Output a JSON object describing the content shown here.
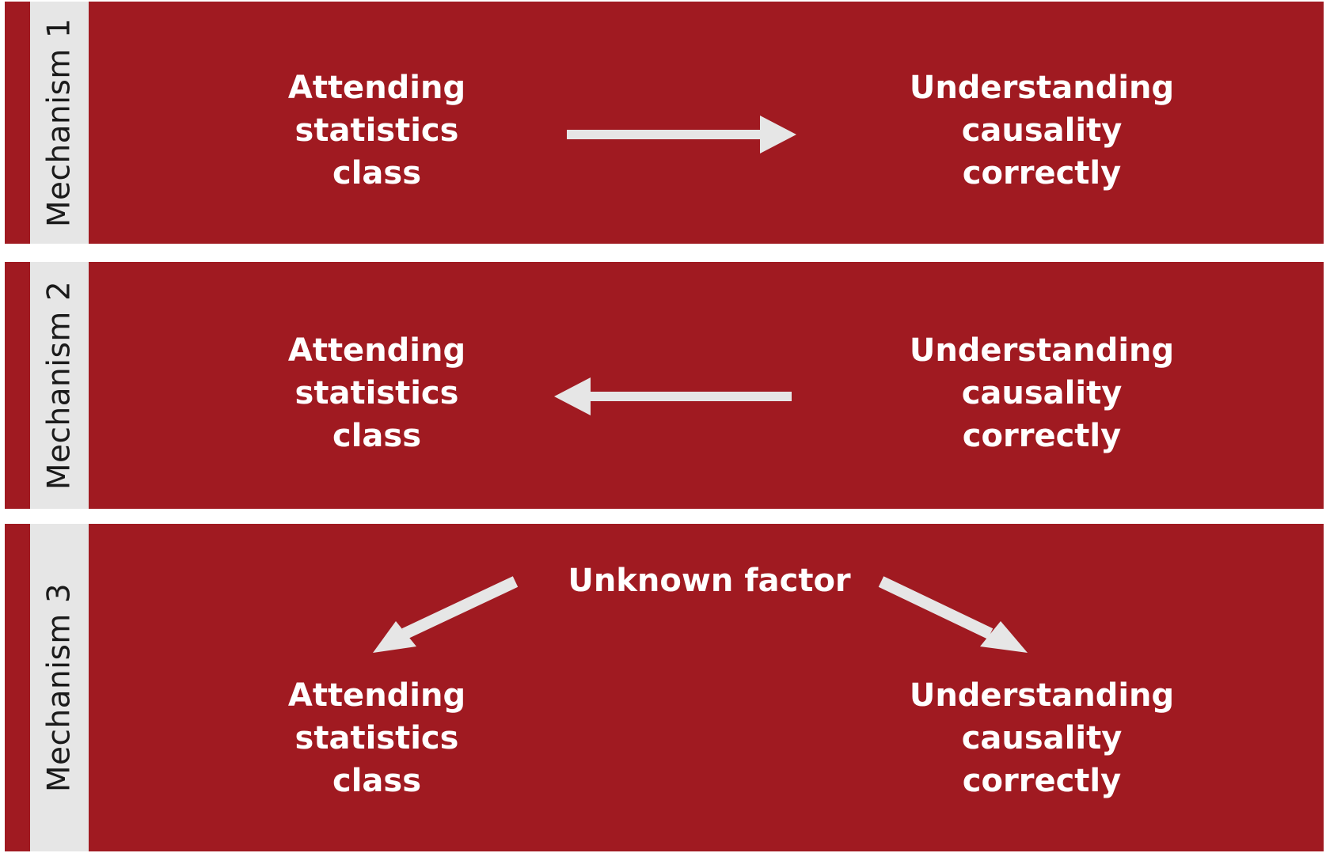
{
  "colors": {
    "panel_background": "#a01a21",
    "label_strip": "#e6e6e6",
    "text": "#ffffff",
    "arrow": "#e6e6e6"
  },
  "mechanisms": [
    {
      "label": "Mechanism 1",
      "cause": [
        "Attending",
        "statistics",
        "class"
      ],
      "effect": [
        "Understanding",
        "causality",
        "correctly"
      ],
      "direction": "left-to-right"
    },
    {
      "label": "Mechanism 2",
      "cause": [
        "Attending",
        "statistics",
        "class"
      ],
      "effect": [
        "Understanding",
        "causality",
        "correctly"
      ],
      "direction": "right-to-left"
    },
    {
      "label": "Mechanism 3",
      "confounder": "Unknown factor",
      "cause": [
        "Attending",
        "statistics",
        "class"
      ],
      "effect": [
        "Understanding",
        "causality",
        "correctly"
      ],
      "direction": "common-cause"
    }
  ]
}
